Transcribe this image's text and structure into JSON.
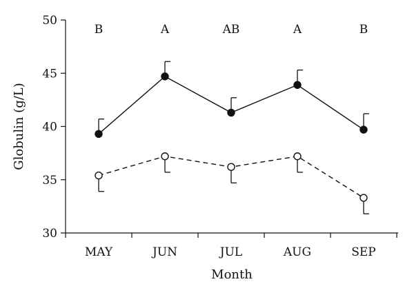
{
  "chart_data": {
    "type": "line",
    "categories": [
      "MAY",
      "JUN",
      "JUL",
      "AUG",
      "SEP"
    ],
    "xlabel": "Month",
    "ylabel": "Globulin (g/L)",
    "ylim": [
      30,
      50
    ],
    "yticks": [
      30,
      35,
      40,
      45,
      50
    ],
    "grid": false,
    "series": [
      {
        "marker": "filled-circle",
        "line_style": "solid",
        "values": [
          39.3,
          44.7,
          41.3,
          43.9,
          39.7
        ],
        "errors": [
          1.4,
          1.4,
          1.4,
          1.4,
          1.5
        ]
      },
      {
        "marker": "open-circle",
        "line_style": "dashed",
        "values": [
          35.4,
          37.2,
          36.2,
          37.2,
          33.3
        ],
        "errors": [
          1.5,
          1.5,
          1.5,
          1.5,
          1.5
        ]
      }
    ],
    "annotations": [
      "B",
      "A",
      "AB",
      "A",
      "B"
    ]
  }
}
